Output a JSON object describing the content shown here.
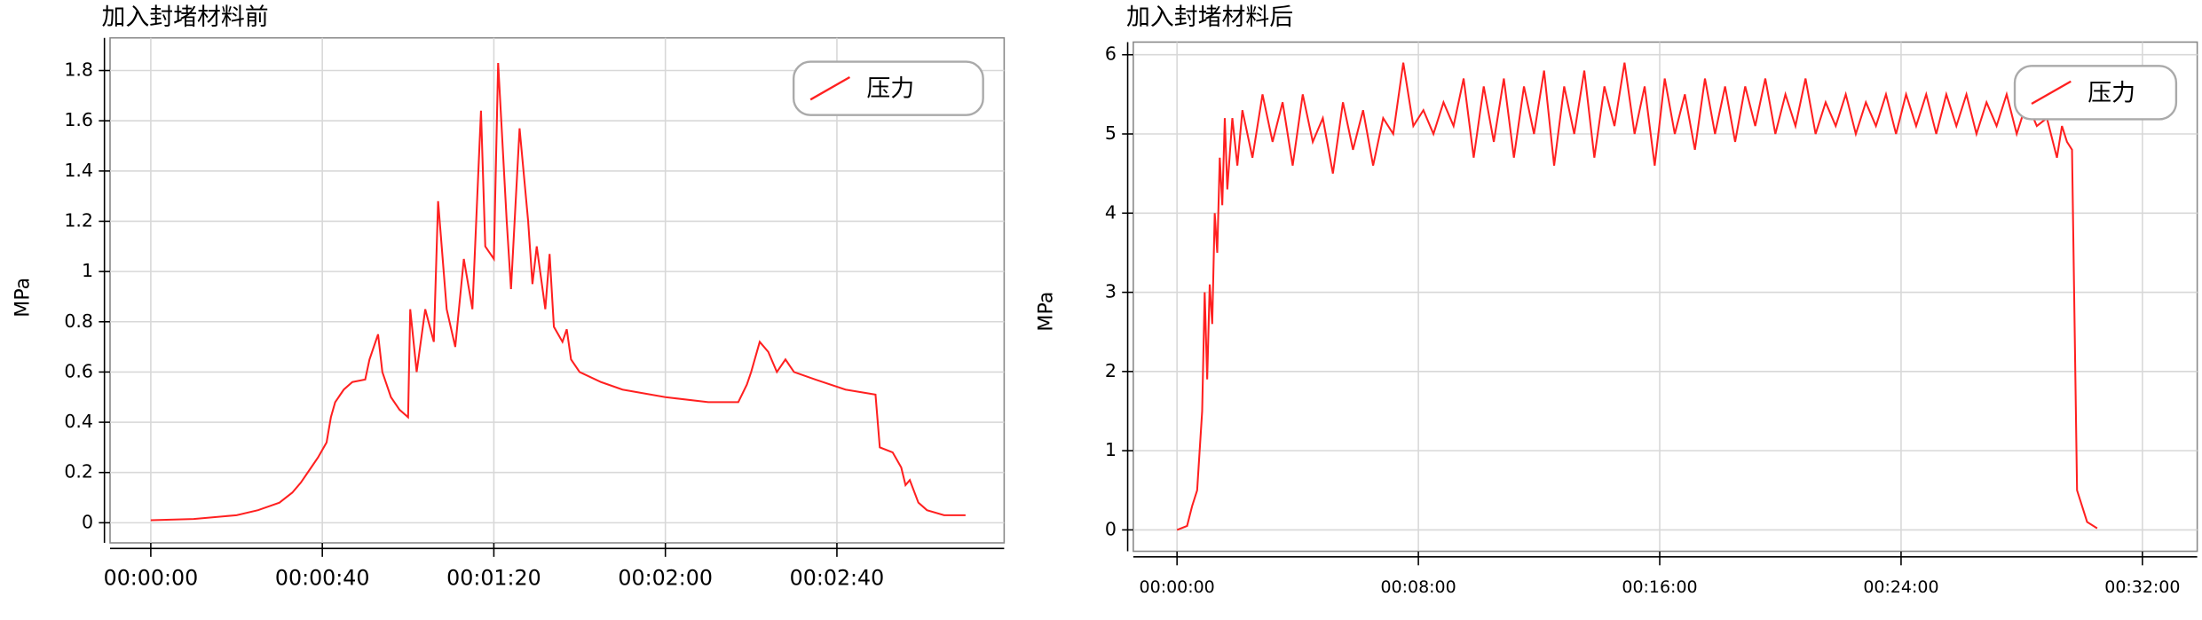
{
  "chart_data": [
    {
      "type": "line",
      "title": "加入封堵材料前",
      "y_label": "MPa",
      "legend": "upper right",
      "grid": true,
      "xlim": [
        -9.5,
        199
      ],
      "ylim": [
        -0.08,
        1.93
      ],
      "xticks": [
        {
          "value": 0,
          "label": "00:00:00"
        },
        {
          "value": 40,
          "label": "00:00:40"
        },
        {
          "value": 80,
          "label": "00:01:20"
        },
        {
          "value": 120,
          "label": "00:02:00"
        },
        {
          "value": 160,
          "label": "00:02:40"
        }
      ],
      "yticks": [
        0,
        0.2,
        0.4,
        0.6,
        0.8,
        1,
        1.2,
        1.4,
        1.6,
        1.8
      ],
      "x": [
        0,
        10,
        20,
        25,
        30,
        33,
        35,
        37,
        39,
        41,
        42,
        43,
        45,
        47,
        50,
        51,
        53,
        54,
        56,
        58,
        60,
        60.5,
        62,
        64,
        66,
        67,
        69,
        71,
        73,
        75,
        77,
        78,
        80,
        81,
        83,
        84,
        86,
        88,
        89,
        90,
        92,
        93,
        94,
        96,
        97,
        98,
        100,
        105,
        110,
        120,
        130,
        137,
        139,
        140,
        142,
        144,
        146,
        148,
        150,
        155,
        162,
        169,
        170,
        173,
        175,
        176,
        177,
        179,
        181,
        185,
        190
      ],
      "series": [
        {
          "name": "压力",
          "color": "#ff2020",
          "values": [
            0.01,
            0.015,
            0.03,
            0.05,
            0.08,
            0.12,
            0.16,
            0.21,
            0.26,
            0.32,
            0.42,
            0.48,
            0.53,
            0.56,
            0.57,
            0.65,
            0.75,
            0.6,
            0.5,
            0.45,
            0.42,
            0.85,
            0.6,
            0.85,
            0.72,
            1.28,
            0.85,
            0.7,
            1.05,
            0.85,
            1.64,
            1.1,
            1.05,
            1.83,
            1.2,
            0.93,
            1.57,
            1.2,
            0.95,
            1.1,
            0.85,
            1.07,
            0.78,
            0.72,
            0.77,
            0.65,
            0.6,
            0.56,
            0.53,
            0.5,
            0.48,
            0.48,
            0.55,
            0.6,
            0.72,
            0.68,
            0.6,
            0.65,
            0.6,
            0.57,
            0.53,
            0.51,
            0.3,
            0.28,
            0.22,
            0.15,
            0.17,
            0.08,
            0.05,
            0.03,
            0.03
          ]
        }
      ]
    },
    {
      "type": "line",
      "title": "加入封堵材料后",
      "y_label": "MPa",
      "legend": "upper right",
      "grid": true,
      "xlim": [
        -87,
        2029
      ],
      "ylim": [
        -0.27,
        6.16
      ],
      "xticks": [
        {
          "value": 0,
          "label": "00:00:00"
        },
        {
          "value": 480,
          "label": "00:08:00"
        },
        {
          "value": 960,
          "label": "00:16:00"
        },
        {
          "value": 1440,
          "label": "00:24:00"
        },
        {
          "value": 1920,
          "label": "00:32:00"
        }
      ],
      "yticks": [
        0,
        1,
        2,
        3,
        4,
        5,
        6
      ],
      "x": [
        0,
        20,
        30,
        40,
        50,
        55,
        60,
        65,
        70,
        75,
        80,
        85,
        90,
        95,
        100,
        110,
        120,
        130,
        150,
        170,
        190,
        210,
        230,
        250,
        270,
        290,
        310,
        330,
        350,
        370,
        390,
        410,
        430,
        450,
        470,
        490,
        510,
        530,
        550,
        570,
        590,
        610,
        630,
        650,
        670,
        690,
        710,
        730,
        750,
        770,
        790,
        810,
        830,
        850,
        870,
        890,
        910,
        930,
        950,
        970,
        990,
        1010,
        1030,
        1050,
        1070,
        1090,
        1110,
        1130,
        1150,
        1170,
        1190,
        1210,
        1230,
        1250,
        1270,
        1290,
        1310,
        1330,
        1350,
        1370,
        1390,
        1410,
        1430,
        1450,
        1470,
        1490,
        1510,
        1530,
        1550,
        1570,
        1590,
        1610,
        1630,
        1650,
        1670,
        1690,
        1710,
        1730,
        1750,
        1760,
        1770,
        1780,
        1790,
        1800,
        1810,
        1830
      ],
      "series": [
        {
          "name": "压力",
          "color": "#ff2020",
          "values": [
            0,
            0.05,
            0.3,
            0.5,
            1.5,
            3.0,
            1.9,
            3.1,
            2.6,
            4.0,
            3.5,
            4.7,
            4.1,
            5.2,
            4.3,
            5.2,
            4.6,
            5.3,
            4.7,
            5.5,
            4.9,
            5.4,
            4.6,
            5.5,
            4.9,
            5.2,
            4.5,
            5.4,
            4.8,
            5.3,
            4.6,
            5.2,
            5.0,
            5.9,
            5.1,
            5.3,
            5.0,
            5.4,
            5.1,
            5.7,
            4.7,
            5.6,
            4.9,
            5.7,
            4.7,
            5.6,
            5.0,
            5.8,
            4.6,
            5.6,
            5.0,
            5.8,
            4.7,
            5.6,
            5.1,
            5.9,
            5.0,
            5.6,
            4.6,
            5.7,
            5.0,
            5.5,
            4.8,
            5.7,
            5.0,
            5.6,
            4.9,
            5.6,
            5.1,
            5.7,
            5.0,
            5.5,
            5.1,
            5.7,
            5.0,
            5.4,
            5.1,
            5.5,
            5.0,
            5.4,
            5.1,
            5.5,
            5.0,
            5.5,
            5.1,
            5.5,
            5.0,
            5.5,
            5.1,
            5.5,
            5.0,
            5.4,
            5.1,
            5.5,
            5.0,
            5.4,
            5.1,
            5.2,
            4.7,
            5.1,
            4.9,
            4.8,
            0.5,
            0.3,
            0.1,
            0.02
          ]
        }
      ]
    }
  ]
}
